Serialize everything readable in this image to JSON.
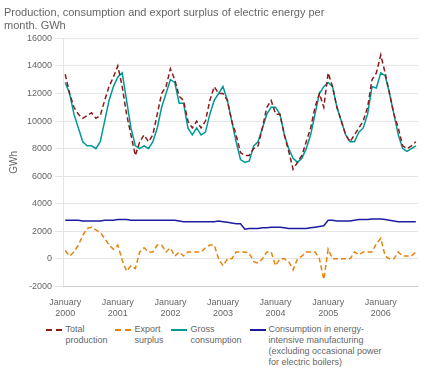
{
  "chart_data": {
    "type": "line",
    "title": "Production, consumption and export surplus of electric energy per\nmonth. GWh",
    "y_label": "GWh",
    "categories": [
      "January\n2000",
      null,
      null,
      null,
      null,
      null,
      null,
      null,
      null,
      null,
      null,
      null,
      "January\n2001",
      null,
      null,
      null,
      null,
      null,
      null,
      null,
      null,
      null,
      null,
      null,
      "January\n2002",
      null,
      null,
      null,
      null,
      null,
      null,
      null,
      null,
      null,
      null,
      null,
      "January\n2003",
      null,
      null,
      null,
      null,
      null,
      null,
      null,
      null,
      null,
      null,
      null,
      "January\n2004",
      null,
      null,
      null,
      null,
      null,
      null,
      null,
      null,
      null,
      null,
      null,
      "January\n2005",
      null,
      null,
      null,
      null,
      null,
      null,
      null,
      null,
      null,
      null,
      null,
      "January\n2006",
      null,
      null,
      null,
      null,
      null,
      null,
      null,
      null
    ],
    "ylim": [
      -2000,
      16000
    ],
    "yticks": [
      -2000,
      0,
      2000,
      4000,
      6000,
      8000,
      10000,
      12000,
      14000,
      16000
    ],
    "grid": "y",
    "series": [
      {
        "name": "Total\nproduction",
        "color": "#8B1A1A",
        "line_style": "dashed",
        "values": [
          13400,
          12000,
          11000,
          10500,
          10200,
          10400,
          10600,
          10200,
          10400,
          11500,
          12500,
          13200,
          14000,
          12500,
          10500,
          9000,
          7500,
          8500,
          9000,
          8500,
          9000,
          10500,
          12000,
          12500,
          13800,
          13000,
          11800,
          11500,
          10000,
          9500,
          10000,
          9500,
          10000,
          11500,
          12500,
          12000,
          12000,
          11500,
          10000,
          9000,
          7700,
          7500,
          7500,
          8000,
          8200,
          9500,
          11000,
          11500,
          10500,
          10500,
          9000,
          7800,
          6500,
          7000,
          7500,
          8500,
          9500,
          11000,
          12000,
          11000,
          13500,
          12500,
          11000,
          10000,
          9000,
          8500,
          9000,
          9500,
          10000,
          11000,
          13000,
          13500,
          14800,
          13500,
          12000,
          10500,
          9500,
          8200,
          8000,
          8200,
          8500
        ]
      },
      {
        "name": "Export\nsurplus",
        "color": "#E8820A",
        "line_style": "dashed",
        "values": [
          600,
          200,
          500,
          1000,
          1700,
          2200,
          2300,
          2100,
          1900,
          1500,
          1000,
          700,
          1000,
          -100,
          -900,
          -500,
          -700,
          500,
          800,
          500,
          500,
          1000,
          1000,
          500,
          800,
          200,
          500,
          200,
          500,
          500,
          500,
          500,
          800,
          1000,
          1000,
          0,
          -500,
          0,
          0,
          500,
          500,
          500,
          400,
          -200,
          -300,
          0,
          500,
          500,
          -500,
          0,
          0,
          -200,
          -800,
          0,
          200,
          500,
          500,
          500,
          0,
          -1500,
          700,
          0,
          0,
          0,
          0,
          0,
          500,
          300,
          500,
          500,
          500,
          1100,
          1500,
          200,
          0,
          0,
          500,
          200,
          200,
          200,
          500
        ]
      },
      {
        "name": "Gross\nconsumption",
        "color": "#009999",
        "line_style": "solid",
        "values": [
          12800,
          12000,
          10500,
          9500,
          8500,
          8200,
          8200,
          8000,
          8500,
          10000,
          11500,
          12500,
          13200,
          13500,
          11500,
          9500,
          8200,
          8000,
          8200,
          8000,
          8500,
          9500,
          11000,
          12000,
          13000,
          12800,
          11300,
          11300,
          9500,
          9000,
          9500,
          9000,
          9200,
          10500,
          11500,
          12000,
          12500,
          11500,
          10000,
          8500,
          7200,
          7000,
          7100,
          8200,
          8500,
          9500,
          10500,
          11000,
          11000,
          10500,
          9000,
          8000,
          7300,
          7000,
          7300,
          8000,
          9000,
          10500,
          12000,
          12500,
          12800,
          12500,
          11000,
          10000,
          9000,
          8500,
          8500,
          9200,
          9500,
          10500,
          12500,
          12400,
          13500,
          13300,
          12000,
          10500,
          9000,
          8000,
          7800,
          8000,
          8200
        ]
      },
      {
        "name": "Consumption in energy-\nintensive manufacturing\n(excluding occasional power\nfor electric boilers)",
        "color": "#1C1CA0",
        "line_style": "solid",
        "values": [
          2800,
          2800,
          2800,
          2800,
          2750,
          2750,
          2750,
          2750,
          2750,
          2800,
          2800,
          2800,
          2850,
          2850,
          2850,
          2800,
          2800,
          2800,
          2800,
          2800,
          2800,
          2800,
          2800,
          2800,
          2800,
          2800,
          2750,
          2700,
          2700,
          2700,
          2700,
          2700,
          2700,
          2700,
          2700,
          2750,
          2700,
          2650,
          2600,
          2550,
          2550,
          2150,
          2200,
          2200,
          2200,
          2250,
          2250,
          2300,
          2300,
          2300,
          2250,
          2200,
          2200,
          2200,
          2200,
          2200,
          2250,
          2300,
          2350,
          2400,
          2800,
          2800,
          2750,
          2750,
          2750,
          2750,
          2800,
          2850,
          2850,
          2850,
          2900,
          2900,
          2900,
          2850,
          2800,
          2750,
          2700,
          2700,
          2700,
          2700,
          2700
        ]
      }
    ]
  }
}
